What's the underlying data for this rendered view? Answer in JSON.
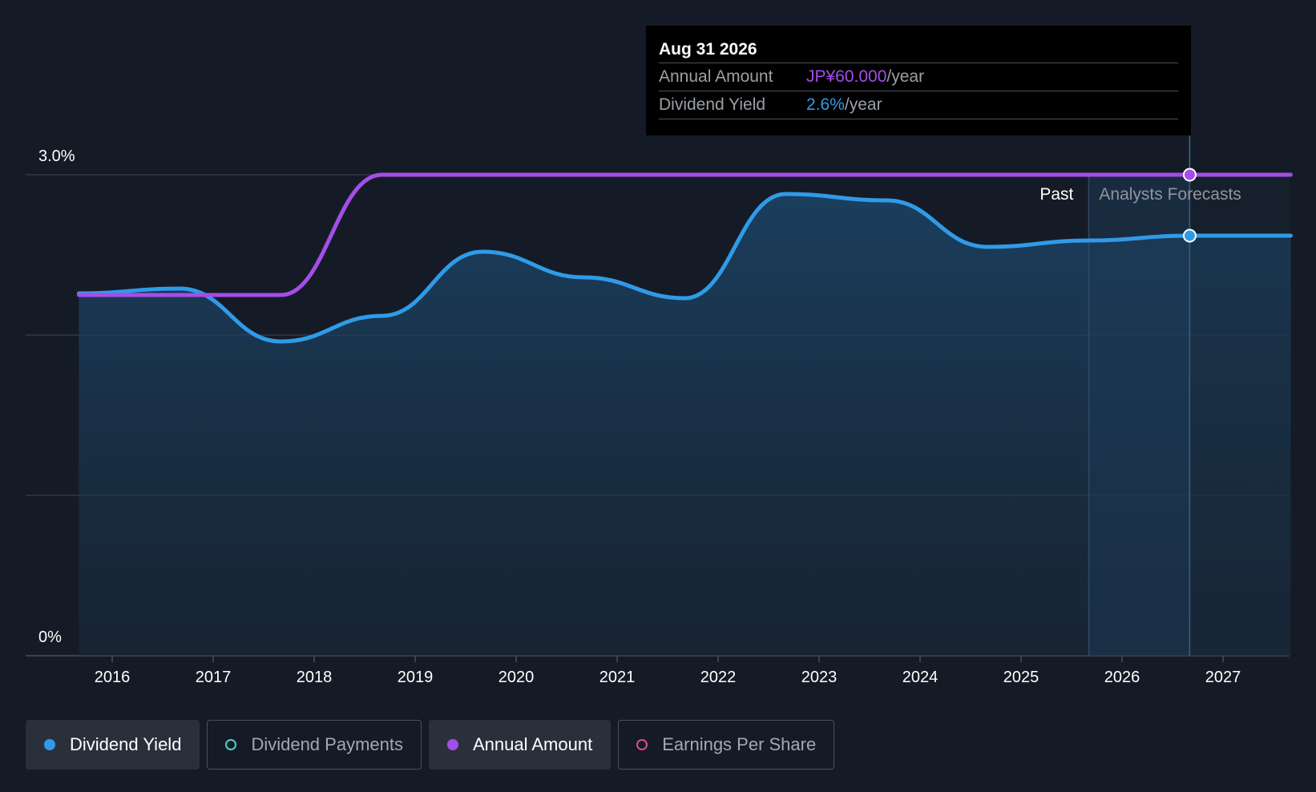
{
  "chart_data": {
    "type": "line",
    "x_ticks": [
      "2016",
      "2017",
      "2018",
      "2019",
      "2020",
      "2021",
      "2022",
      "2023",
      "2024",
      "2025",
      "2026",
      "2027"
    ],
    "y_tick_labels": [
      "3.0%",
      "0%"
    ],
    "ylim": [
      0,
      3.0
    ],
    "past_label": "Past",
    "forecast_label": "Analysts Forecasts",
    "forecast_start": 2025.67,
    "series": [
      {
        "name": "Dividend Yield",
        "unit": "%",
        "color": "#2f9be8",
        "filled": true,
        "points": [
          [
            2015.67,
            2.26
          ],
          [
            2016.67,
            2.29
          ],
          [
            2017.67,
            1.96
          ],
          [
            2018.67,
            2.12
          ],
          [
            2019.67,
            2.52
          ],
          [
            2020.67,
            2.36
          ],
          [
            2021.67,
            2.23
          ],
          [
            2022.67,
            2.88
          ],
          [
            2023.67,
            2.84
          ],
          [
            2024.67,
            2.55
          ],
          [
            2025.67,
            2.59
          ],
          [
            2026.67,
            2.62
          ],
          [
            2027.67,
            2.62
          ]
        ]
      },
      {
        "name": "Annual Amount",
        "unit": "JP¥",
        "color": "#a44de8",
        "filled": false,
        "points": [
          [
            2015.67,
            45
          ],
          [
            2017.67,
            45
          ],
          [
            2018.67,
            60
          ],
          [
            2027.67,
            60
          ]
        ]
      }
    ],
    "highlight": {
      "x": 2026.67,
      "yield": 2.62,
      "amount": 60
    }
  },
  "tooltip": {
    "date": "Aug 31 2026",
    "rows": [
      {
        "label": "Annual Amount",
        "value": "JP¥60.000",
        "unit": "/year",
        "color": "#a44de8"
      },
      {
        "label": "Dividend Yield",
        "value": "2.6%",
        "unit": "/year",
        "color": "#2f9be8"
      }
    ]
  },
  "legend": [
    {
      "label": "Dividend Yield",
      "color": "#2f9be8",
      "active": true,
      "filled": true
    },
    {
      "label": "Dividend Payments",
      "color": "#4fd1c5",
      "active": false,
      "filled": false
    },
    {
      "label": "Annual Amount",
      "color": "#a44de8",
      "active": true,
      "filled": true
    },
    {
      "label": "Earnings Per Share",
      "color": "#d64f8a",
      "active": false,
      "filled": false
    }
  ]
}
